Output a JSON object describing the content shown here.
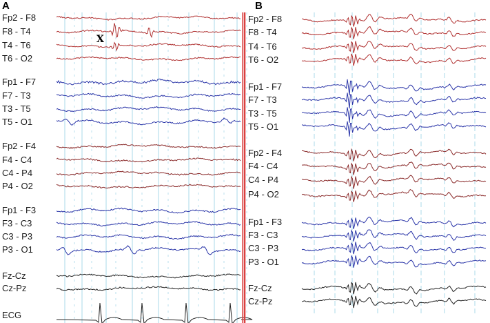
{
  "panels": [
    {
      "letter": "A",
      "marker": "X",
      "groups": [
        {
          "color": "#b03030",
          "channels": [
            "Fp2 - F8",
            "F8 - T4",
            "T4 - T6",
            "T6 - O2"
          ]
        },
        {
          "color": "#2a35a8",
          "channels": [
            "Fp1 - F7",
            "F7 - T3",
            "T3 - T5",
            "T5 - O1"
          ]
        },
        {
          "color": "#8a2a2a",
          "channels": [
            "Fp2 - F4",
            "F4 - C4",
            "C4 - P4",
            "P4 - O2"
          ]
        },
        {
          "color": "#2a35a8",
          "channels": [
            "Fp1 - F3",
            "F3 - C3",
            "C3 - P3",
            "P3 - O1"
          ]
        },
        {
          "color": "#222222",
          "channels": [
            "Fz-Cz",
            "Cz-Pz"
          ]
        },
        {
          "color": "#222222",
          "channels": [
            "ECG"
          ]
        }
      ]
    },
    {
      "letter": "B",
      "groups": [
        {
          "color": "#b03030",
          "channels": [
            "Fp2 - F8",
            "F8 - T4",
            "T4 - T6",
            "T6 - O2"
          ]
        },
        {
          "color": "#2a35a8",
          "channels": [
            "Fp1 - F7",
            "F7 - T3",
            "T3 - T5",
            "T5 - O1"
          ]
        },
        {
          "color": "#8a2a2a",
          "channels": [
            "Fp2 - F4",
            "F4 - C4",
            "C4 - P4",
            "P4 - O2"
          ]
        },
        {
          "color": "#2a35a8",
          "channels": [
            "Fp1 - F3",
            "F3 - C3",
            "C3 - P3",
            "P3 - O1"
          ]
        },
        {
          "color": "#222222",
          "channels": [
            "Fz-Cz",
            "Cz-Pz"
          ]
        }
      ]
    }
  ],
  "colors": {
    "gridline": "#a8d8e8",
    "separator": "#d94040"
  }
}
